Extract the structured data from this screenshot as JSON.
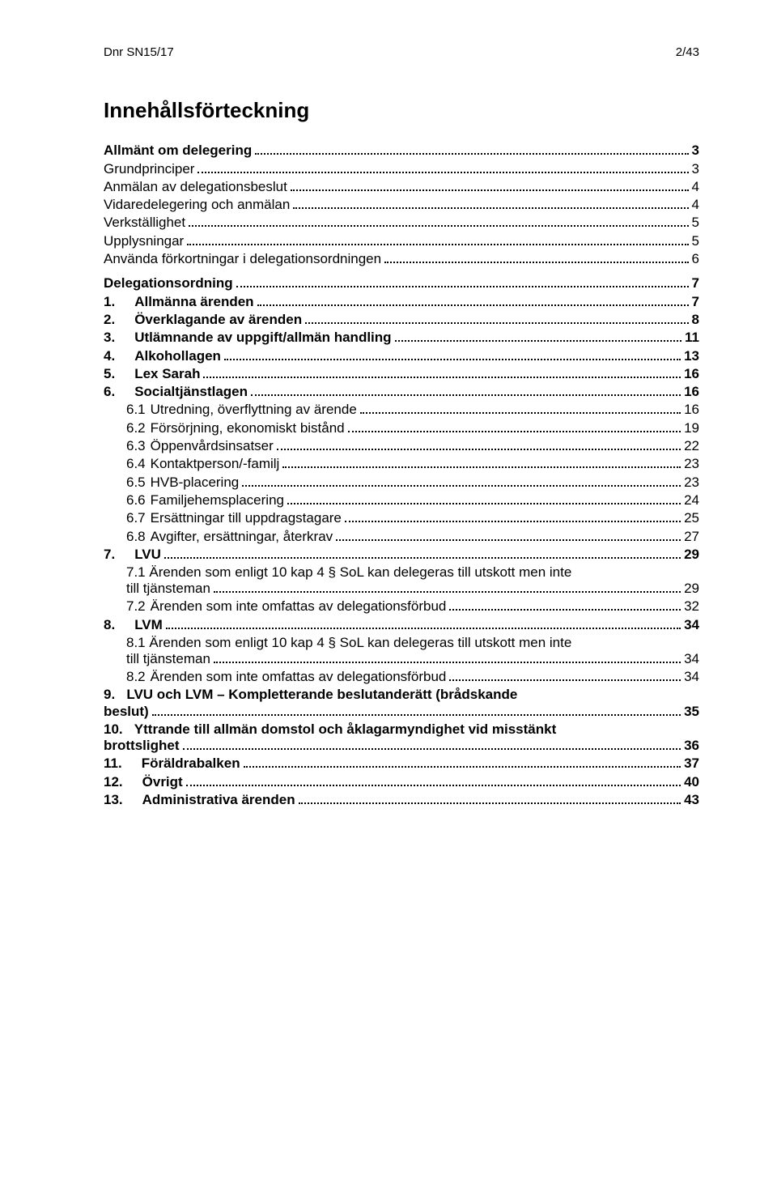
{
  "header": {
    "left": "Dnr SN15/17",
    "right": "2/43"
  },
  "toc_title": "Innehållsförteckning",
  "entries": [
    {
      "level": "section",
      "num": "",
      "text": "Allmänt om delegering",
      "page": "3"
    },
    {
      "level": "lvl1b",
      "num": "",
      "text": "Grundprinciper",
      "page": "3"
    },
    {
      "level": "lvl1b",
      "num": "",
      "text": "Anmälan av delegationsbeslut",
      "page": "4"
    },
    {
      "level": "lvl1b",
      "num": "",
      "text": "Vidaredelegering och anmälan",
      "page": "4"
    },
    {
      "level": "lvl1b",
      "num": "",
      "text": "Verkställighet",
      "page": "5"
    },
    {
      "level": "lvl1b",
      "num": "",
      "text": "Upplysningar",
      "page": "5"
    },
    {
      "level": "lvl1b",
      "num": "",
      "text": "Använda förkortningar i delegationsordningen",
      "page": "6"
    },
    {
      "level": "section",
      "num": "",
      "text": "Delegationsordning",
      "page": "7"
    },
    {
      "level": "lvl1",
      "num": "1.",
      "text": "Allmänna ärenden",
      "page": "7"
    },
    {
      "level": "lvl1",
      "num": "2.",
      "text": "Överklagande av ärenden",
      "page": "8"
    },
    {
      "level": "lvl1",
      "num": "3.",
      "text": "Utlämnande av uppgift/allmän handling",
      "page": "11"
    },
    {
      "level": "lvl1",
      "num": "4.",
      "text": "Alkohollagen",
      "page": "13"
    },
    {
      "level": "lvl1",
      "num": "5.",
      "text": "Lex Sarah",
      "page": "16"
    },
    {
      "level": "lvl1",
      "num": "6.",
      "text": "Socialtjänstlagen",
      "page": "16"
    },
    {
      "level": "lvl2",
      "num": "6.1",
      "text": "Utredning, överflyttning av ärende",
      "page": "16"
    },
    {
      "level": "lvl2",
      "num": "6.2",
      "text": "Försörjning, ekonomiskt bistånd",
      "page": "19"
    },
    {
      "level": "lvl2",
      "num": "6.3",
      "text": "Öppenvårdsinsatser",
      "page": "22"
    },
    {
      "level": "lvl2",
      "num": "6.4",
      "text": "Kontaktperson/-familj",
      "page": "23"
    },
    {
      "level": "lvl2",
      "num": "6.5",
      "text": "HVB-placering",
      "page": "23"
    },
    {
      "level": "lvl2",
      "num": "6.6",
      "text": "Familjehemsplacering",
      "page": "24"
    },
    {
      "level": "lvl2",
      "num": "6.7",
      "text": "Ersättningar till uppdragstagare",
      "page": "25"
    },
    {
      "level": "lvl2",
      "num": "6.8",
      "text": "Avgifter, ersättningar, återkrav",
      "page": "27"
    },
    {
      "level": "lvl1",
      "num": "7.",
      "text": "LVU",
      "page": "29"
    },
    {
      "level": "lvl2multi",
      "num": "7.1",
      "text1": "Ärenden som enligt 10 kap 4 § SoL kan delegeras till utskott men inte",
      "text2": "till tjänsteman",
      "page": "29"
    },
    {
      "level": "lvl2",
      "num": "7.2",
      "text": "Ärenden som inte omfattas av delegationsförbud",
      "page": "32"
    },
    {
      "level": "lvl1",
      "num": "8.",
      "text": "LVM",
      "page": "34"
    },
    {
      "level": "lvl2multi",
      "num": "8.1",
      "text1": "Ärenden som enligt 10 kap 4 § SoL kan delegeras till utskott men inte",
      "text2": "till tjänsteman",
      "page": "34"
    },
    {
      "level": "lvl2",
      "num": "8.2",
      "text": "Ärenden som inte omfattas av delegationsförbud",
      "page": "34"
    },
    {
      "level": "lvl1multi",
      "num": "9.",
      "text1": "LVU och LVM – Kompletterande beslutanderätt (brådskande",
      "text2": "beslut)",
      "page": "35"
    },
    {
      "level": "lvl1multi",
      "num": "10.",
      "text1": "Yttrande till allmän domstol och åklagarmyndighet vid misstänkt",
      "text2": "brottslighet",
      "page": "36"
    },
    {
      "level": "lvl1",
      "num": "11.",
      "text": "Föräldrabalken",
      "page": "37"
    },
    {
      "level": "lvl1",
      "num": "12.",
      "text": "Övrigt",
      "page": "40"
    },
    {
      "level": "lvl1",
      "num": "13.",
      "text": "Administrativa ärenden",
      "page": "43"
    }
  ]
}
